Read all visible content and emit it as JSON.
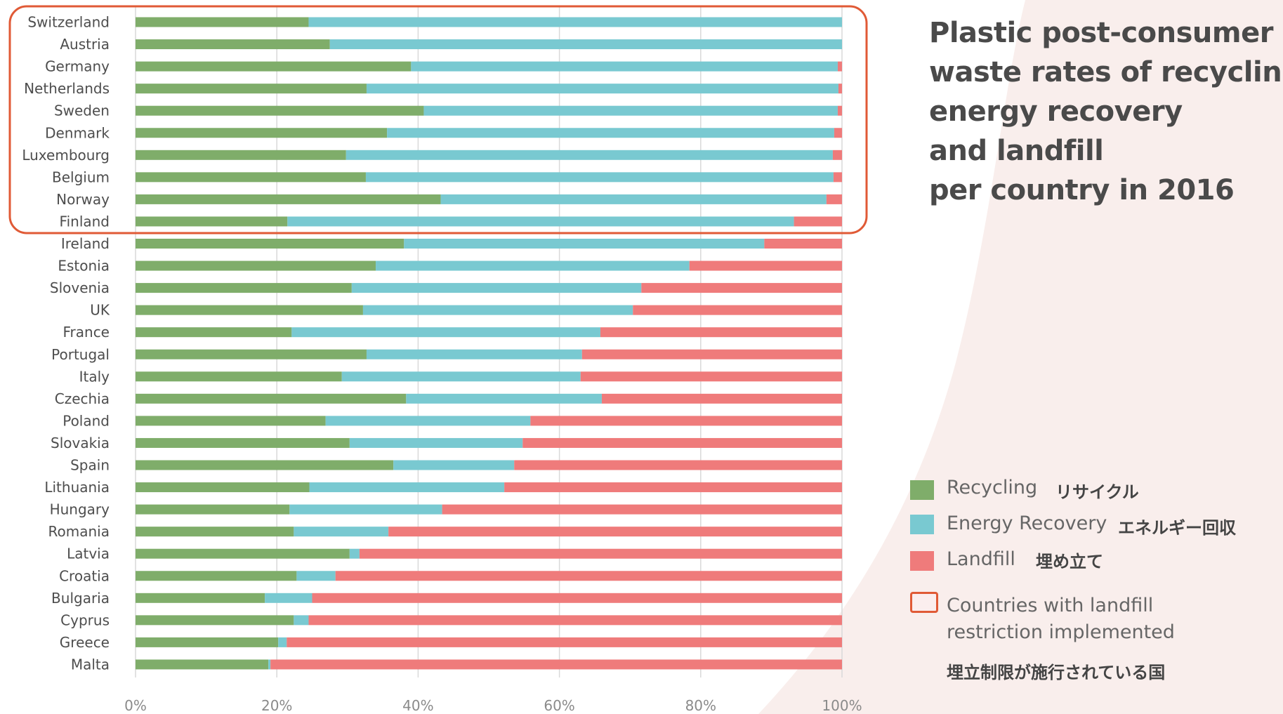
{
  "title_lines": [
    "Plastic post-consumer",
    "waste rates of recycling,",
    "energy recovery",
    "and landfill",
    "per country in 2016"
  ],
  "colors": {
    "recycling": "#7fad6a",
    "energy": "#79c9d1",
    "landfill": "#ef7b7b",
    "highlight": "#e05a36",
    "background_curve": "#f9eeec"
  },
  "legend": {
    "recycling": {
      "en": "Recycling",
      "jp": "リサイクル"
    },
    "energy": {
      "en": "Energy Recovery",
      "jp": "エネルギー回収"
    },
    "landfill": {
      "en": "Landfill",
      "jp": "埋め立て"
    },
    "restriction": {
      "en_line1": "Countries with landfill",
      "en_line2": "restriction implemented",
      "jp": "埋立制限が施行されている国"
    }
  },
  "chart_data": {
    "type": "bar",
    "orientation": "horizontal",
    "stacked": true,
    "categories": [
      "Switzerland",
      "Austria",
      "Germany",
      "Netherlands",
      "Sweden",
      "Denmark",
      "Luxembourg",
      "Belgium",
      "Norway",
      "Finland",
      "Ireland",
      "Estonia",
      "Slovenia",
      "UK",
      "France",
      "Portugal",
      "Italy",
      "Czechia",
      "Poland",
      "Slovakia",
      "Spain",
      "Lithuania",
      "Hungary",
      "Romania",
      "Latvia",
      "Croatia",
      "Bulgaria",
      "Cyprus",
      "Greece",
      "Malta"
    ],
    "series": [
      {
        "name": "Recycling",
        "values": [
          24.5,
          27.5,
          39,
          32.7,
          40.8,
          35.6,
          29.8,
          32.6,
          43.2,
          21.5,
          38,
          34,
          30.6,
          32.2,
          22.1,
          32.7,
          29.2,
          38.3,
          26.9,
          30.3,
          36.5,
          24.6,
          21.8,
          22.4,
          30.3,
          22.8,
          18.3,
          22.4,
          20.2,
          18.8
        ]
      },
      {
        "name": "Energy Recovery",
        "values": [
          75.5,
          72.5,
          60.4,
          66.8,
          58.6,
          63.3,
          68.9,
          66.2,
          54.6,
          71.7,
          51,
          44.4,
          41,
          38.2,
          43.7,
          30.5,
          33.8,
          27.7,
          29,
          24.5,
          17.1,
          27.6,
          21.6,
          13.4,
          1.4,
          5.5,
          6.7,
          2.1,
          1.2,
          0.3
        ]
      },
      {
        "name": "Landfill",
        "values": [
          0,
          0,
          0.6,
          0.5,
          0.6,
          1.1,
          1.3,
          1.2,
          2.2,
          6.8,
          11,
          21.6,
          28.4,
          29.6,
          34.2,
          36.8,
          37,
          34,
          44.1,
          45.2,
          46.4,
          47.8,
          56.6,
          64.2,
          68.3,
          71.7,
          75,
          75.5,
          78.6,
          80.9
        ]
      }
    ],
    "highlighted_categories": [
      "Switzerland",
      "Austria",
      "Germany",
      "Netherlands",
      "Sweden",
      "Denmark",
      "Luxembourg",
      "Belgium",
      "Norway",
      "Finland"
    ],
    "xticks": [
      "0%",
      "20%",
      "40%",
      "60%",
      "80%",
      "100%"
    ],
    "xlim": [
      0,
      100
    ],
    "grid": "vertical",
    "legend_position": "right"
  }
}
